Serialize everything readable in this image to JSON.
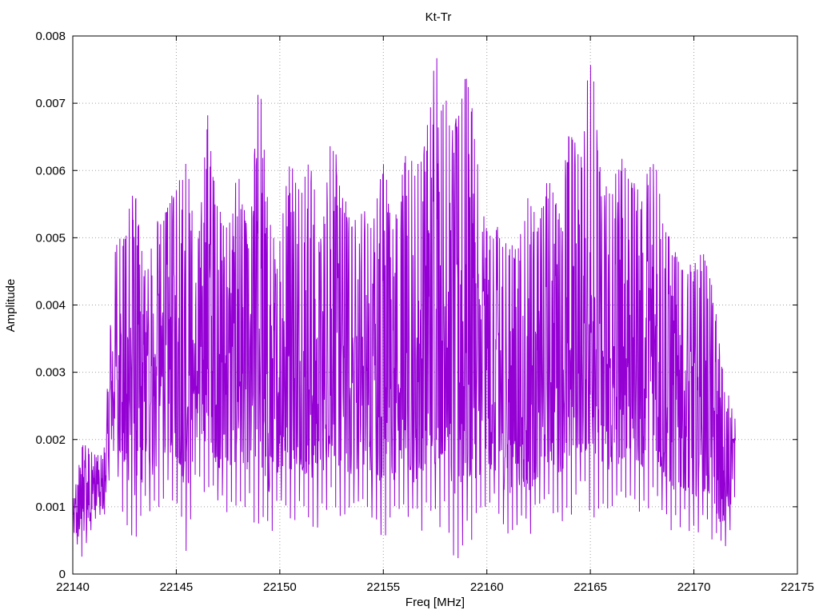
{
  "chart_data": {
    "type": "line",
    "title": "Kt-Tr",
    "xlabel": "Freq [MHz]",
    "ylabel": "Amplitude",
    "xlim": [
      22140,
      22175
    ],
    "ylim": [
      0,
      0.008
    ],
    "xticks": [
      "22140",
      "22145",
      "22150",
      "22155",
      "22160",
      "22165",
      "22170",
      "22175"
    ],
    "yticks": [
      "0",
      "0.001",
      "0.002",
      "0.003",
      "0.004",
      "0.005",
      "0.006",
      "0.007",
      "0.008"
    ],
    "grid": true,
    "series": [
      {
        "color": "#9400d3",
        "x": [
          22140.0,
          22140.5,
          22141.0,
          22141.5,
          22142.0,
          22142.5,
          22143.0,
          22143.5,
          22144.0,
          22144.5,
          22145.0,
          22145.5,
          22146.0,
          22146.5,
          22147.0,
          22147.5,
          22148.0,
          22148.5,
          22149.0,
          22149.5,
          22150.0,
          22150.5,
          22151.0,
          22151.5,
          22152.0,
          22152.5,
          22153.0,
          22153.5,
          22154.0,
          22154.5,
          22155.0,
          22155.5,
          22156.0,
          22156.5,
          22157.0,
          22157.5,
          22158.0,
          22158.5,
          22159.0,
          22159.5,
          22160.0,
          22160.5,
          22161.0,
          22161.5,
          22162.0,
          22162.5,
          22163.0,
          22163.5,
          22164.0,
          22164.5,
          22165.0,
          22165.5,
          22166.0,
          22166.5,
          22167.0,
          22167.5,
          22168.0,
          22168.5,
          22169.0,
          22169.5,
          22170.0,
          22170.5,
          22171.0,
          22171.5,
          22172.0
        ],
        "y_max": [
          0.0011,
          0.002,
          0.0018,
          0.0018,
          0.0049,
          0.0051,
          0.0059,
          0.0045,
          0.0052,
          0.0055,
          0.0058,
          0.0062,
          0.0048,
          0.007,
          0.0055,
          0.0051,
          0.0061,
          0.005,
          0.0075,
          0.0053,
          0.0051,
          0.0063,
          0.0058,
          0.0062,
          0.0051,
          0.0067,
          0.0057,
          0.0053,
          0.0055,
          0.0052,
          0.0063,
          0.0051,
          0.0064,
          0.0061,
          0.0065,
          0.0078,
          0.0071,
          0.0068,
          0.0075,
          0.0065,
          0.0051,
          0.0052,
          0.0049,
          0.005,
          0.0057,
          0.0052,
          0.0061,
          0.0055,
          0.0069,
          0.0061,
          0.0079,
          0.0062,
          0.0058,
          0.0062,
          0.0059,
          0.0056,
          0.0064,
          0.0054,
          0.0049,
          0.0045,
          0.0047,
          0.0048,
          0.0041,
          0.0029,
          0.0023
        ],
        "y_min": [
          0.0005,
          0.0002,
          0.0008,
          0.0008,
          0.0018,
          0.0006,
          0.0003,
          0.0009,
          0.0008,
          0.0012,
          0.001,
          0.0003,
          0.0014,
          0.0011,
          0.0009,
          0.0008,
          0.001,
          0.0009,
          0.0005,
          0.0004,
          0.001,
          0.0007,
          0.0009,
          0.0003,
          0.0008,
          0.001,
          0.0007,
          0.0008,
          0.0009,
          0.0007,
          0.0005,
          0.0007,
          0.0009,
          0.0005,
          0.0007,
          0.0005,
          0.0009,
          0.0,
          0.0003,
          0.0005,
          0.001,
          0.0008,
          0.0005,
          0.0007,
          0.0004,
          0.0008,
          0.0009,
          0.0008,
          0.0007,
          0.001,
          0.0008,
          0.0009,
          0.0007,
          0.0009,
          0.0011,
          0.0008,
          0.001,
          0.0007,
          0.0006,
          0.0007,
          0.0005,
          0.0006,
          0.0004,
          0.0002,
          0.0011
        ]
      }
    ]
  }
}
